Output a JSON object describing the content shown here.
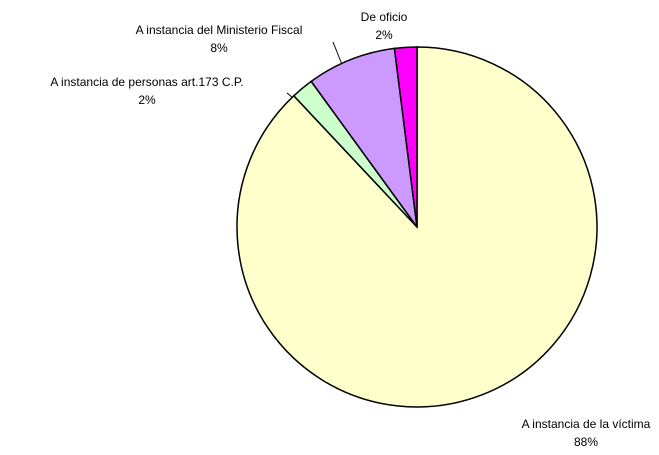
{
  "chart_data": {
    "type": "pie",
    "categories": [
      "A instancia de la víctima",
      "A instancia de personas art.173 C.P.",
      "A instancia del Ministerio Fiscal",
      "De oficio"
    ],
    "values": [
      88,
      2,
      8,
      2
    ],
    "value_labels": [
      "88%",
      "2%",
      "8%",
      "2%"
    ],
    "colors": [
      "#ffffcc",
      "#ccffcc",
      "#cc99ff",
      "#ff00ff"
    ]
  }
}
